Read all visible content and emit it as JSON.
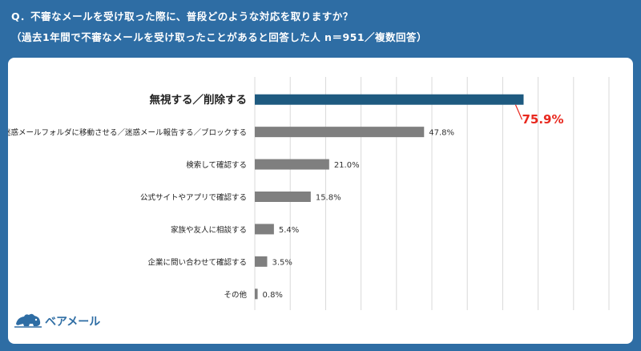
{
  "question": "Q．不審なメールを受け取った際に、普段どのような対応を取りますか？",
  "subtitle": "（過去1年間で不審なメールを受け取ったことがあると回答した人 n＝951／複数回答）",
  "brand": {
    "name": "ベアメール",
    "icon": "bear-icon",
    "color": "#2e6da4"
  },
  "colors": {
    "highlight": "#1e5a80",
    "bar": "#7f7f7f",
    "highlight_label": "#e8281e",
    "grid": "#d9d9d9"
  },
  "chart_data": {
    "type": "bar",
    "orientation": "horizontal",
    "categories": [
      "無視する／削除する",
      "迷惑メールフォルダに移動させる／迷惑メール報告する／ブロックする",
      "検索して確認する",
      "公式サイトやアプリで確認する",
      "家族や友人に相談する",
      "企業に問い合わせて確認する",
      "その他"
    ],
    "values": [
      75.9,
      47.8,
      21.0,
      15.8,
      5.4,
      3.5,
      0.8
    ],
    "value_labels": [
      "75.9%",
      "47.8%",
      "21.0%",
      "15.8%",
      "5.4%",
      "3.5%",
      "0.8%"
    ],
    "highlight_index": 0,
    "xlim": [
      0,
      100
    ],
    "grid": true,
    "xlabel": "",
    "ylabel": ""
  }
}
